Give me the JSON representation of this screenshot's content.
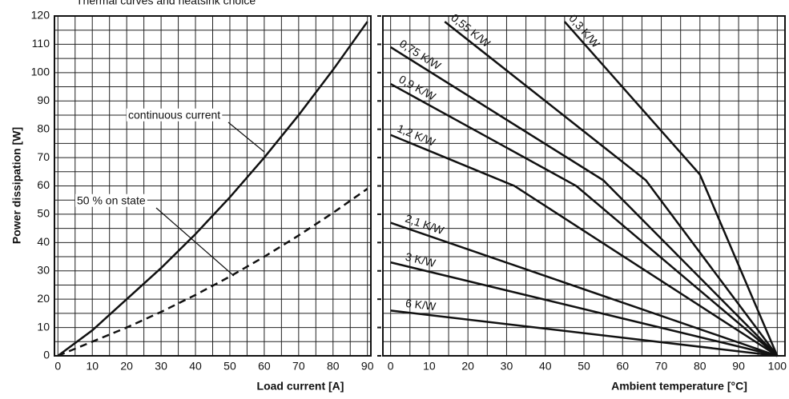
{
  "chart_data": [
    {
      "type": "line",
      "title": "Thermal curves and heatsink choice",
      "xlabel": "Load current [A]",
      "ylabel": "Power dissipation [W]",
      "x": [
        0,
        10,
        20,
        30,
        40,
        50,
        60,
        70,
        80,
        90
      ],
      "series": [
        {
          "name": "continuous current",
          "color": "#111111",
          "dash": false,
          "values": [
            0,
            9,
            20,
            31,
            43,
            56,
            70,
            85,
            101,
            118
          ]
        },
        {
          "name": "50 % on state",
          "color": "#111111",
          "dash": true,
          "values": [
            0,
            5,
            10,
            15.5,
            21.5,
            28,
            35,
            42.5,
            50.5,
            59
          ]
        }
      ],
      "xlim": [
        -1,
        91
      ],
      "xticks": [
        0,
        10,
        20,
        30,
        40,
        50,
        60,
        70,
        80,
        90
      ],
      "ylim": [
        0,
        120
      ],
      "yticks": [
        0,
        10,
        20,
        30,
        40,
        50,
        60,
        70,
        80,
        90,
        100,
        110,
        120
      ],
      "grid": true
    },
    {
      "type": "line",
      "xlabel": "Ambient temperature [°C]",
      "series": [
        {
          "name": "0,3 K/W",
          "color": "#111111",
          "x": [
            45,
            80,
            100
          ],
          "values": [
            118,
            64,
            0
          ]
        },
        {
          "name": "0,55 K/W",
          "color": "#111111",
          "x": [
            14,
            66,
            100
          ],
          "values": [
            118,
            62,
            0
          ]
        },
        {
          "name": "0,75 K/W",
          "color": "#111111",
          "x": [
            0,
            55,
            100
          ],
          "values": [
            109,
            62,
            0
          ]
        },
        {
          "name": "0,9 K/W",
          "color": "#111111",
          "x": [
            0,
            48,
            100
          ],
          "values": [
            96,
            60,
            0
          ]
        },
        {
          "name": "1,2 K/W",
          "color": "#111111",
          "x": [
            0,
            32,
            100
          ],
          "values": [
            78,
            60,
            0
          ]
        },
        {
          "name": "2,1 K/W",
          "color": "#111111",
          "x": [
            0,
            100
          ],
          "values": [
            47,
            0
          ]
        },
        {
          "name": "3 K/W",
          "color": "#111111",
          "x": [
            0,
            100
          ],
          "values": [
            33,
            0
          ]
        },
        {
          "name": "6 K/W",
          "color": "#111111",
          "x": [
            0,
            100
          ],
          "values": [
            16,
            0
          ]
        }
      ],
      "xlim": [
        -2,
        102
      ],
      "xticks": [
        0,
        10,
        20,
        30,
        40,
        50,
        60,
        70,
        80,
        90,
        100
      ],
      "ylim": [
        0,
        120
      ],
      "yticks": [
        0,
        10,
        20,
        30,
        40,
        50,
        60,
        70,
        80,
        90,
        100,
        110,
        120
      ],
      "grid": true
    }
  ]
}
